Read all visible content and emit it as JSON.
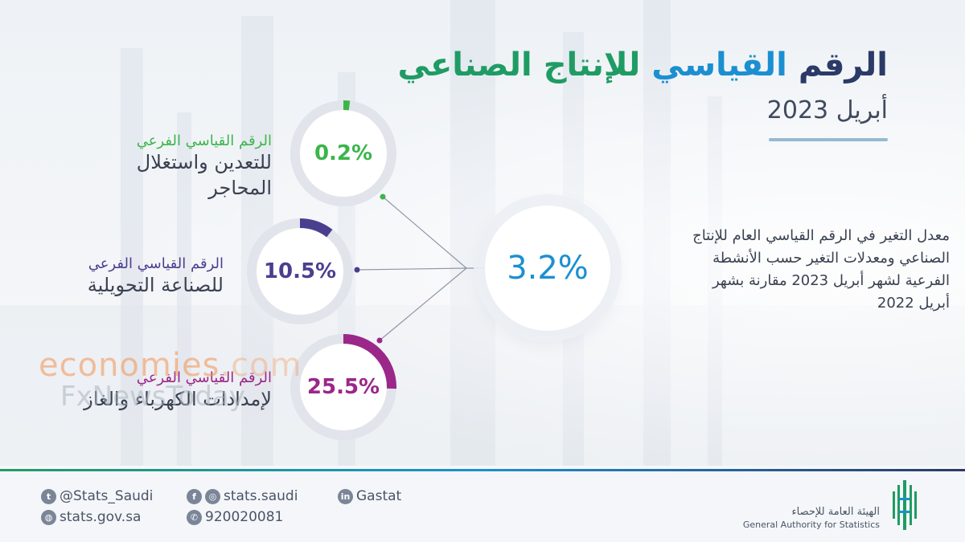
{
  "header": {
    "title_part1": "الرقم",
    "title_part2": "القياسي",
    "title_part3": "للإنتاج الصناعي",
    "subtitle": "أبريل 2023"
  },
  "main_index": {
    "value": "3.2%",
    "description": "معدل التغير في الرقم القياسي العام للإنتاج الصناعي ومعدلات التغير حسب الأنشطة الفرعية لشهر أبريل 2023 مقارنة بشهر أبريل 2022"
  },
  "sub_indices": [
    {
      "value_label": "0.2%",
      "value": 0.2,
      "label_line1": "الرقم القياسي الفرعي",
      "label_line2": "للتعدين واستغلال",
      "label_line3": "المحاجر",
      "color": "#3bb54a"
    },
    {
      "value_label": "10.5%",
      "value": 10.5,
      "label_line1": "الرقم القياسي الفرعي",
      "label_line2": "للصناعة التحويلية",
      "color": "#4a3f8f"
    },
    {
      "value_label": "25.5%",
      "value": 25.5,
      "label_line1": "الرقم القياسي الفرعي",
      "label_line2": "لإمدادات الكهرباء والغاز",
      "color": "#9b2789"
    }
  ],
  "watermarks": {
    "economies": "economies",
    "dot_com": ".com",
    "fxnews": "FxNewsToday"
  },
  "footer": {
    "twitter": "@Stats_Saudi",
    "social": "stats.saudi",
    "linkedin": "Gastat",
    "website": "stats.gov.sa",
    "phone": "920020081",
    "org_name_ar": "الهيئة العامة للإحصاء",
    "org_name_en": "General Authority for Statistics"
  },
  "colors": {
    "navy": "#2b3a67",
    "blue": "#1c8fd1",
    "green": "#1f9c64",
    "ring_track": "#e1e4ea"
  },
  "icons": [
    "twitter-icon",
    "facebook-icon",
    "instagram-icon",
    "linkedin-icon",
    "globe-icon",
    "phone-icon",
    "gastat-logo-icon"
  ]
}
